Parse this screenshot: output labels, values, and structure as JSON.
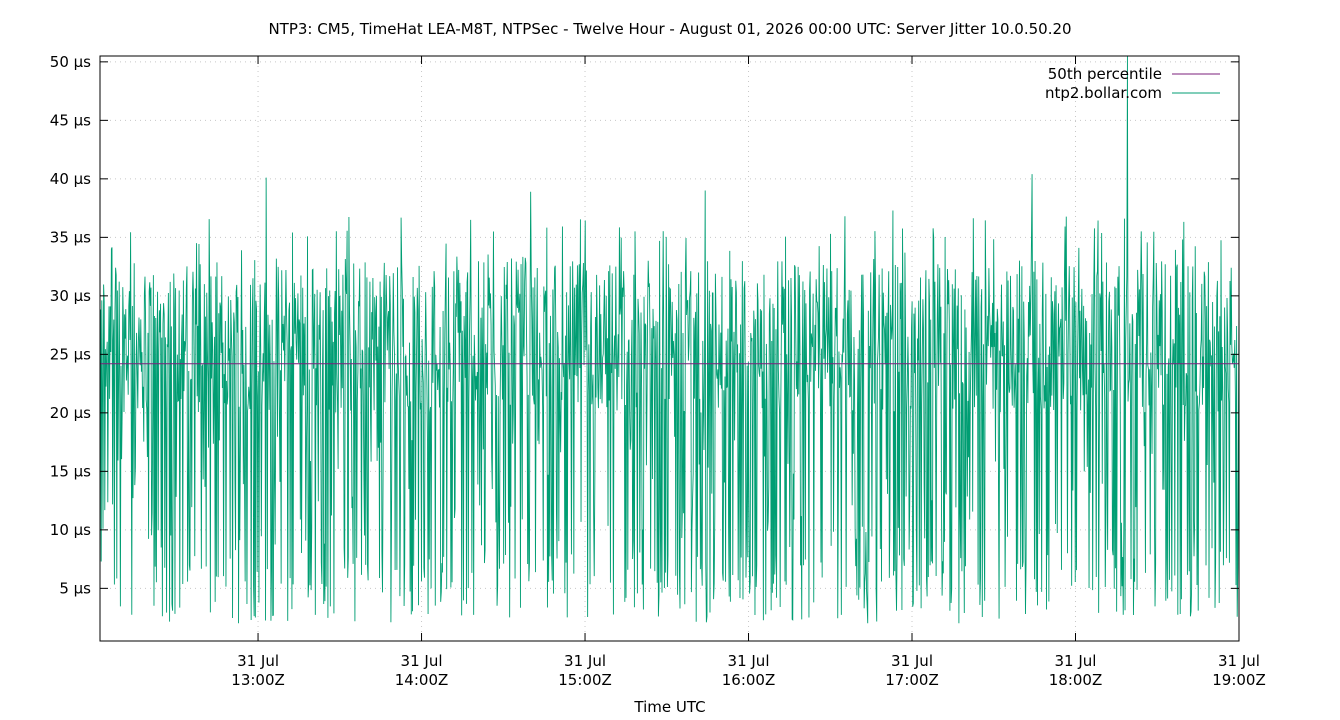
{
  "chart_data": {
    "type": "line",
    "title": "NTP3: CM5, TimeHat LEA-M8T, NTPSec - Twelve Hour - August 01, 2026 00:00 UTC: Server Jitter 10.0.50.20",
    "xlabel": "Time UTC",
    "ylabel": "",
    "x_range": [
      "12:02Z",
      "19:00Z"
    ],
    "ylim": [
      0.5,
      50.5
    ],
    "y_ticks": [
      {
        "value": 5,
        "label": "5 µs"
      },
      {
        "value": 10,
        "label": "10 µs"
      },
      {
        "value": 15,
        "label": "15 µs"
      },
      {
        "value": 20,
        "label": "20 µs"
      },
      {
        "value": 25,
        "label": "25 µs"
      },
      {
        "value": 30,
        "label": "30 µs"
      },
      {
        "value": 35,
        "label": "35 µs"
      },
      {
        "value": 40,
        "label": "40 µs"
      },
      {
        "value": 45,
        "label": "45 µs"
      },
      {
        "value": 50,
        "label": "50 µs"
      }
    ],
    "x_ticks": [
      {
        "date": "31 Jul",
        "time": "13:00Z",
        "minutes": 780
      },
      {
        "date": "31 Jul",
        "time": "14:00Z",
        "minutes": 840
      },
      {
        "date": "31 Jul",
        "time": "15:00Z",
        "minutes": 900
      },
      {
        "date": "31 Jul",
        "time": "16:00Z",
        "minutes": 960
      },
      {
        "date": "31 Jul",
        "time": "17:00Z",
        "minutes": 1020
      },
      {
        "date": "31 Jul",
        "time": "18:00Z",
        "minutes": 1080
      },
      {
        "date": "31 Jul",
        "time": "19:00Z",
        "minutes": 1140
      }
    ],
    "x_start_minutes": 722,
    "x_end_minutes": 1140,
    "grid": true,
    "legend_position": "top-right",
    "series": [
      {
        "name": "50th percentile",
        "color": "#7b1f7b",
        "constant": 24.2
      },
      {
        "name": "ntp2.bollar.com",
        "color": "#009e73",
        "typical_range": [
          2,
          33
        ],
        "peaks": [
          {
            "minutes": 783,
            "value": 40.1
          },
          {
            "minutes": 880,
            "value": 38.9
          },
          {
            "minutes": 944,
            "value": 39.0
          },
          {
            "minutes": 1013,
            "value": 37.3
          },
          {
            "minutes": 1064,
            "value": 40.4
          },
          {
            "minutes": 1099,
            "value": 50.5
          }
        ]
      }
    ]
  }
}
